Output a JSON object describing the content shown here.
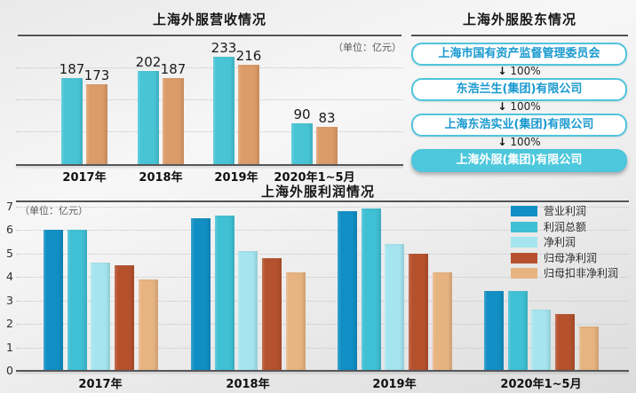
{
  "shareholder_diagram": {
    "title": "上海外服股东情况",
    "arrow_label": "100%",
    "colors": {
      "border": "#4fc4dc",
      "text": "#1899cf",
      "filled_bg": "#4ec8dc",
      "filled_text": "#ffffff"
    },
    "nodes": [
      {
        "label": "上海市国有资产监督管理委员会",
        "style": "outline"
      },
      {
        "label": "东浩兰生(集团)有限公司",
        "style": "outline"
      },
      {
        "label": "上海东浩实业(集团)有限公司",
        "style": "outline"
      },
      {
        "label": "上海外服(集团)有限公司",
        "style": "filled"
      }
    ]
  },
  "chart_data": [
    {
      "id": "revenue",
      "type": "bar",
      "title": "上海外服营收情况",
      "unit_label": "（单位：亿元）",
      "categories": [
        "2017年",
        "2018年",
        "2019年",
        "2020年1~5月"
      ],
      "series": [
        {
          "color": "#47c5d6",
          "values": [
            187,
            202,
            233,
            90
          ]
        },
        {
          "color": "#dc9c69",
          "values": [
            173,
            187,
            216,
            83
          ]
        }
      ],
      "ylim": [
        0,
        250
      ],
      "grid": "dotted-unlabeled",
      "data_labels": true,
      "legend": "none"
    },
    {
      "id": "profit",
      "type": "bar",
      "title": "上海外服利润情况",
      "unit_label": "（单位：亿元）",
      "categories": [
        "2017年",
        "2018年",
        "2019年",
        "2020年1~5月"
      ],
      "series": [
        {
          "name": "营业利润",
          "color": "#118fc4",
          "values": [
            6.0,
            6.5,
            6.8,
            3.4
          ]
        },
        {
          "name": "利润总额",
          "color": "#3fc0d4",
          "values": [
            6.0,
            6.6,
            6.9,
            3.4
          ]
        },
        {
          "name": "净利润",
          "color": "#a5e5ef",
          "values": [
            4.6,
            5.1,
            5.4,
            2.6
          ]
        },
        {
          "name": "归母净利润",
          "color": "#b5512d",
          "values": [
            4.5,
            4.8,
            5.0,
            2.4
          ]
        },
        {
          "name": "归母扣非净利润",
          "color": "#e7b381",
          "values": [
            3.9,
            4.2,
            4.2,
            1.9
          ]
        }
      ],
      "ylim": [
        0,
        7
      ],
      "y_ticks": [
        0,
        1,
        2,
        3,
        4,
        5,
        6,
        7
      ],
      "grid": true,
      "legend_position": "top-right"
    }
  ]
}
